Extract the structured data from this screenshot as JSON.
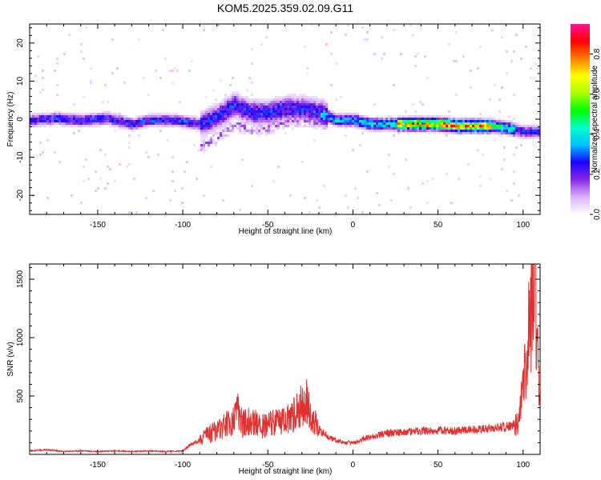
{
  "figure": {
    "title": "KOM5.2025.359.02.09.G11"
  },
  "chart_data": [
    {
      "type": "heatmap",
      "title": "KOM5.2025.359.02.09.G11",
      "xlabel": "Height of straight line (km)",
      "ylabel": "Frequency (Hz)",
      "xlim": [
        -190,
        110
      ],
      "ylim": [
        -25,
        25
      ],
      "xticks": [
        -150,
        -100,
        -50,
        0,
        50,
        100
      ],
      "yticks": [
        -20,
        -10,
        0,
        10,
        20
      ],
      "grid": false,
      "colorbar": {
        "label": "Normalized spectral amplitude",
        "range": [
          0.0,
          0.95
        ],
        "ticks": [
          0.0,
          0.2,
          0.4,
          0.6,
          0.8
        ],
        "colormap": [
          "#ffffff",
          "#d9b3ff",
          "#8a2be2",
          "#1a00ff",
          "#00bfff",
          "#00ffcc",
          "#00ff00",
          "#aaff00",
          "#ffff00",
          "#ff8000",
          "#ff0000",
          "#ff1493"
        ]
      },
      "ridge": {
        "x": [
          -190,
          -175,
          -160,
          -145,
          -130,
          -120,
          -105,
          -90,
          -80,
          -70,
          -60,
          -50,
          -40,
          -30,
          -20,
          -10,
          0,
          10,
          20,
          30,
          40,
          50,
          60,
          70,
          80,
          90,
          100,
          110
        ],
        "y": [
          0,
          0.5,
          0,
          0.5,
          -1,
          0,
          0,
          -1,
          1,
          4,
          2,
          2,
          3,
          3,
          2,
          0,
          0,
          -1,
          -1,
          -1,
          -1,
          -1,
          -1.5,
          -1.5,
          -1.5,
          -2,
          -3,
          -3
        ]
      }
    },
    {
      "type": "line",
      "xlabel": "Height of straight line (km)",
      "ylabel": "SNR (v/v)",
      "xlim": [
        -190,
        110
      ],
      "ylim": [
        0,
        1630
      ],
      "xticks": [
        -150,
        -100,
        -50,
        0,
        50,
        100
      ],
      "yticks": [
        500,
        1000,
        1500
      ],
      "grid": false,
      "line_color": "#e03030",
      "series": [
        {
          "x": [
            -190,
            -180,
            -170,
            -160,
            -150,
            -140,
            -130,
            -120,
            -110,
            -100,
            -95,
            -90,
            -85,
            -80,
            -75,
            -70,
            -68,
            -65,
            -60,
            -55,
            -50,
            -45,
            -40,
            -35,
            -30,
            -28,
            -25,
            -20,
            -15,
            -10,
            -5,
            0,
            10,
            20,
            30,
            40,
            50,
            60,
            70,
            80,
            90,
            95,
            98,
            100,
            102,
            104,
            105,
            106,
            107,
            108,
            110
          ],
          "y": [
            30,
            40,
            25,
            30,
            25,
            30,
            25,
            30,
            25,
            30,
            90,
            120,
            180,
            200,
            250,
            300,
            380,
            260,
            300,
            240,
            250,
            280,
            300,
            330,
            420,
            480,
            350,
            220,
            150,
            120,
            100,
            100,
            150,
            180,
            190,
            200,
            205,
            200,
            210,
            220,
            240,
            250,
            300,
            600,
            850,
            1150,
            1250,
            1400,
            1630,
            1050,
            400
          ]
        }
      ]
    }
  ]
}
